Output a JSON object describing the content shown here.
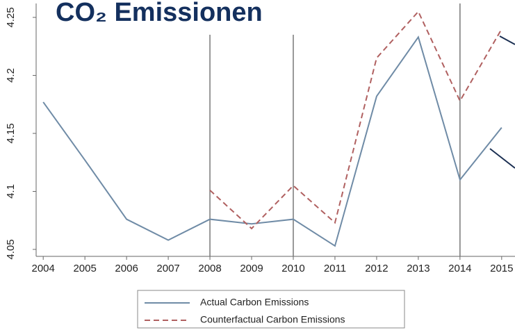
{
  "chart_data": {
    "type": "line",
    "title": "CO₂ Emissionen",
    "x": [
      2004,
      2005,
      2006,
      2007,
      2008,
      2009,
      2010,
      2011,
      2012,
      2013,
      2014,
      2015
    ],
    "series": [
      {
        "name": "Actual Carbon Emissions",
        "color": "#6f8ba6",
        "dash": false,
        "values": [
          4.177,
          4.127,
          4.076,
          4.058,
          4.076,
          4.072,
          4.076,
          4.053,
          4.182,
          4.233,
          4.11,
          4.155
        ]
      },
      {
        "name": "Counterfactual Carbon Emissions",
        "color": "#b06060",
        "dash": true,
        "values": [
          null,
          null,
          null,
          null,
          4.101,
          4.068,
          4.105,
          4.073,
          4.215,
          4.255,
          4.178,
          4.24
        ]
      }
    ],
    "vlines": [
      2008,
      2010,
      2014
    ],
    "xlim": [
      2003.83,
      2015.32
    ],
    "ylim": [
      4.044,
      4.262
    ],
    "xticks": [
      2004,
      2005,
      2006,
      2007,
      2008,
      2009,
      2010,
      2011,
      2012,
      2013,
      2014,
      2015
    ],
    "yticks": [
      4.05,
      4.1,
      4.15,
      4.2,
      4.25
    ],
    "grid": false
  }
}
